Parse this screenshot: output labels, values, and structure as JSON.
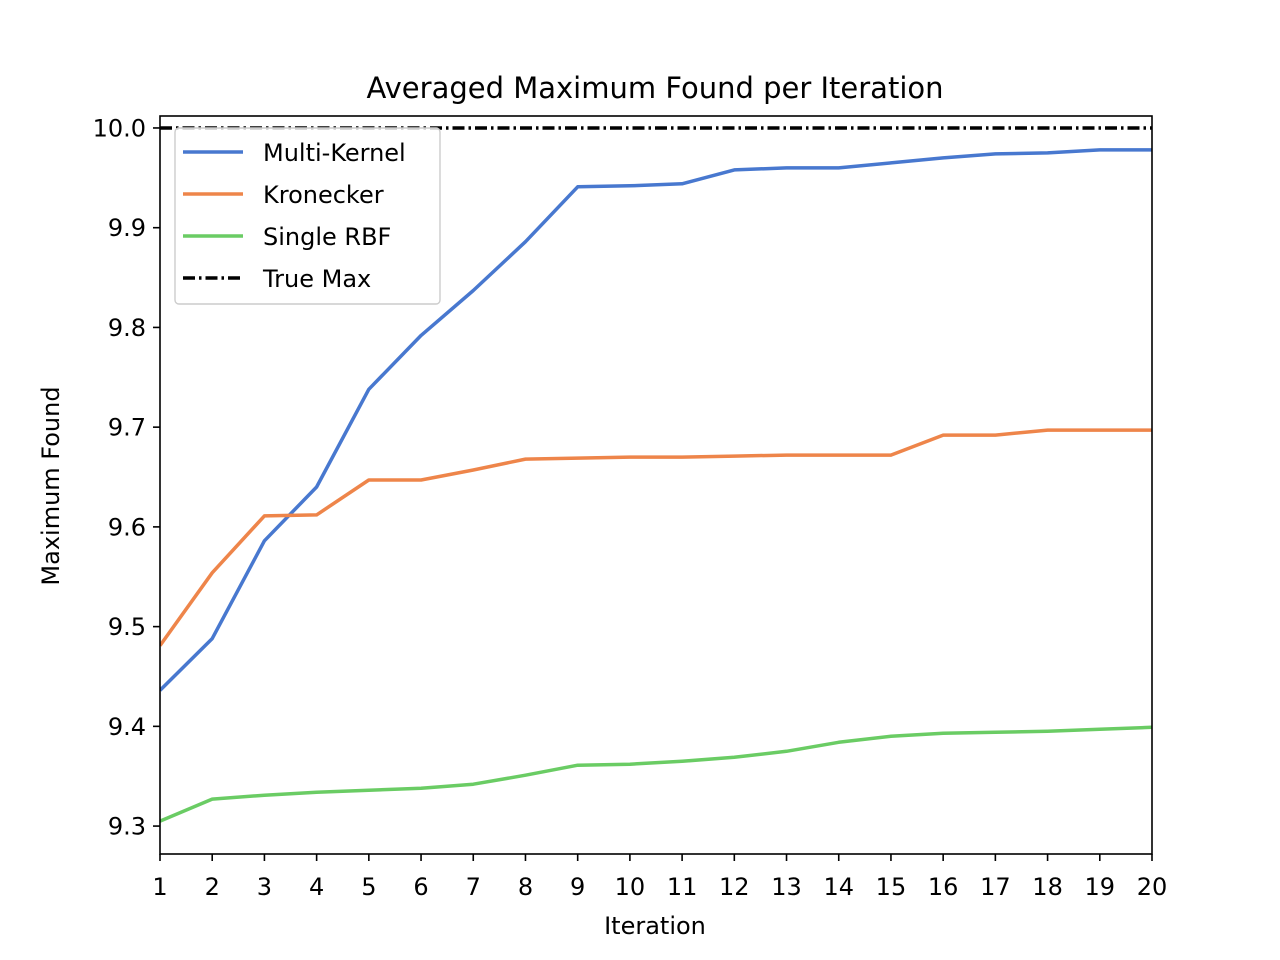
{
  "chart_data": {
    "type": "line",
    "title": "Averaged Maximum Found per Iteration",
    "xlabel": "Iteration",
    "ylabel": "Maximum Found",
    "x": [
      1,
      2,
      3,
      4,
      5,
      6,
      7,
      8,
      9,
      10,
      11,
      12,
      13,
      14,
      15,
      16,
      17,
      18,
      19,
      20
    ],
    "xlim": [
      1,
      20
    ],
    "ylim": [
      9.272,
      10.012
    ],
    "xticks": [
      "1",
      "2",
      "3",
      "4",
      "5",
      "6",
      "7",
      "8",
      "9",
      "10",
      "11",
      "12",
      "13",
      "14",
      "15",
      "16",
      "17",
      "18",
      "19",
      "20"
    ],
    "yticks": [
      "9.3",
      "9.4",
      "9.5",
      "9.6",
      "9.7",
      "9.8",
      "9.9",
      "10.0"
    ],
    "grid": false,
    "legend_position": "upper-left",
    "series": [
      {
        "name": "Multi-Kernel",
        "color": "#4878cf",
        "style": "solid",
        "values": [
          9.436,
          9.488,
          9.586,
          9.64,
          9.738,
          9.792,
          9.837,
          9.886,
          9.941,
          9.942,
          9.944,
          9.958,
          9.96,
          9.96,
          9.965,
          9.97,
          9.974,
          9.975,
          9.978,
          9.978
        ]
      },
      {
        "name": "Kronecker",
        "color": "#ee854a",
        "style": "solid",
        "values": [
          9.481,
          9.554,
          9.611,
          9.612,
          9.647,
          9.647,
          9.657,
          9.668,
          9.669,
          9.67,
          9.67,
          9.671,
          9.672,
          9.672,
          9.672,
          9.692,
          9.692,
          9.697,
          9.697,
          9.697
        ]
      },
      {
        "name": "Single RBF",
        "color": "#6acc64",
        "style": "solid",
        "values": [
          9.305,
          9.327,
          9.331,
          9.334,
          9.336,
          9.338,
          9.342,
          9.351,
          9.361,
          9.362,
          9.365,
          9.369,
          9.375,
          9.384,
          9.39,
          9.393,
          9.394,
          9.395,
          9.397,
          9.399
        ]
      },
      {
        "name": "True Max",
        "color": "#000000",
        "style": "dashdot",
        "values": [
          10.0,
          10.0,
          10.0,
          10.0,
          10.0,
          10.0,
          10.0,
          10.0,
          10.0,
          10.0,
          10.0,
          10.0,
          10.0,
          10.0,
          10.0,
          10.0,
          10.0,
          10.0,
          10.0,
          10.0
        ]
      }
    ]
  }
}
